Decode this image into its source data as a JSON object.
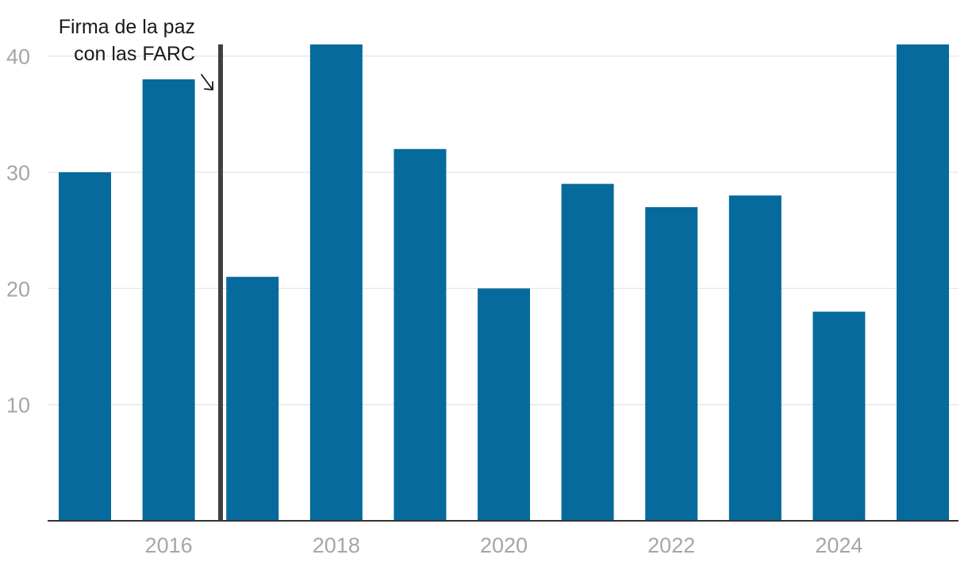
{
  "chart_data": {
    "type": "bar",
    "categories": [
      "2015",
      "2016",
      "2017",
      "2018",
      "2019",
      "2020",
      "2021",
      "2022",
      "2023",
      "2024",
      "2025"
    ],
    "values": [
      30,
      38,
      21,
      41,
      32,
      20,
      29,
      27,
      28,
      18,
      41
    ],
    "title": "",
    "xlabel": "",
    "ylabel": "",
    "ylim": [
      0,
      41
    ],
    "y_ticks": [
      10,
      20,
      30,
      40
    ],
    "x_tick_labels": [
      "2016",
      "2018",
      "2020",
      "2022",
      "2024"
    ],
    "grid": true,
    "bar_color": "#066a9c",
    "annotation": {
      "lines": [
        "Firma de la paz",
        "con las FARC"
      ],
      "marker_year": 2016.6,
      "marker_color": "#404040"
    }
  }
}
